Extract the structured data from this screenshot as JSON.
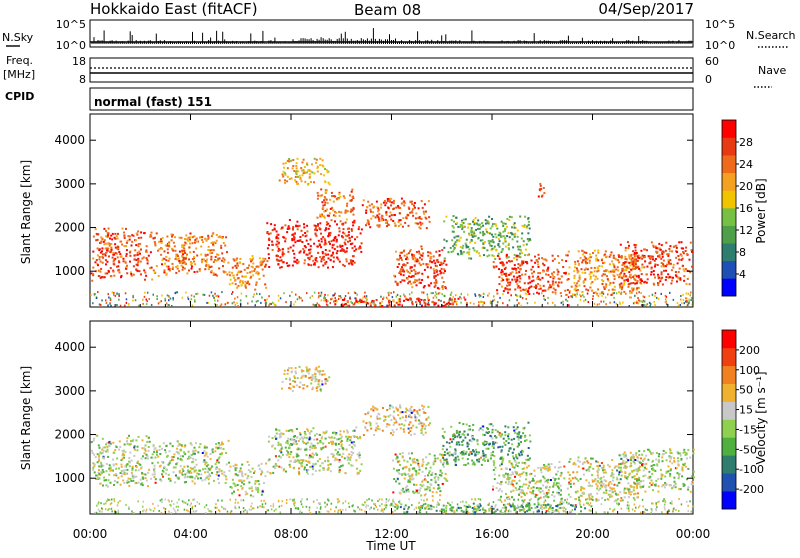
{
  "header": {
    "station": "Hokkaido East (fitACF)",
    "beam": "Beam 08",
    "date": "04/Sep/2017"
  },
  "aux_panels": {
    "nsky_label": "N.Sky",
    "nsky_ticks": [
      "10^5",
      "10^0"
    ],
    "nsearch_label": "N.Search",
    "nsearch_ticks": [
      "10^5",
      "10^0"
    ],
    "freq_label": "Freq.",
    "freq_unit": "[MHz]",
    "freq_ticks": [
      "18",
      "8"
    ],
    "nave_label": "Nave",
    "nave_ticks": [
      "60",
      "0"
    ],
    "cpid_label": "CPID",
    "cpid_text": "normal (fast) 151"
  },
  "chart_data": [
    {
      "type": "heatmap",
      "name": "power",
      "ylabel": "Slant Range [km]",
      "xlabel": "",
      "x_ticks": [
        "00:00",
        "04:00",
        "08:00",
        "12:00",
        "16:00",
        "20:00",
        "00:00"
      ],
      "y_ticks": [
        1000,
        2000,
        3000,
        4000
      ],
      "ylim": [
        180,
        4600
      ],
      "xlim_hours": [
        0,
        24
      ],
      "colorbar": {
        "label": "Power [dB]",
        "ticks": [
          "4",
          "8",
          "12",
          "16",
          "20",
          "24",
          "28"
        ],
        "colors": [
          "#0000ff",
          "#1d4fb5",
          "#2e7d6e",
          "#4f9f4a",
          "#76c043",
          "#f2c400",
          "#f4a020",
          "#ef6a1a",
          "#e83a12",
          "#ff0000"
        ]
      },
      "regions": [
        {
          "t": [
            0.0,
            2.5
          ],
          "r": [
            800,
            2000
          ],
          "level": 0.82
        },
        {
          "t": [
            2.5,
            5.5
          ],
          "r": [
            900,
            1900
          ],
          "level": 0.75
        },
        {
          "t": [
            5.5,
            7.0
          ],
          "r": [
            600,
            1400
          ],
          "level": 0.7
        },
        {
          "t": [
            7.0,
            10.8
          ],
          "r": [
            1100,
            2200
          ],
          "level": 0.92
        },
        {
          "t": [
            7.5,
            9.5
          ],
          "r": [
            3000,
            3600
          ],
          "level": 0.6
        },
        {
          "t": [
            9.0,
            10.5
          ],
          "r": [
            2200,
            2900
          ],
          "level": 0.75
        },
        {
          "t": [
            10.8,
            13.5
          ],
          "r": [
            2000,
            2700
          ],
          "level": 0.8
        },
        {
          "t": [
            12.0,
            14.2
          ],
          "r": [
            600,
            1600
          ],
          "level": 0.85
        },
        {
          "t": [
            14.0,
            17.5
          ],
          "r": [
            1300,
            2300
          ],
          "level": 0.4
        },
        {
          "t": [
            16.0,
            19.0
          ],
          "r": [
            500,
            1400
          ],
          "level": 0.85
        },
        {
          "t": [
            17.8,
            18.1
          ],
          "r": [
            2700,
            3100
          ],
          "level": 0.8
        },
        {
          "t": [
            19.0,
            22.0
          ],
          "r": [
            500,
            1500
          ],
          "level": 0.7
        },
        {
          "t": [
            21.0,
            24.0
          ],
          "r": [
            700,
            1700
          ],
          "level": 0.85
        },
        {
          "t": [
            9.0,
            15.0
          ],
          "r": [
            200,
            400
          ],
          "level": 0.95
        }
      ]
    },
    {
      "type": "heatmap",
      "name": "velocity",
      "ylabel": "Slant Range [km]",
      "xlabel": "Time UT",
      "x_ticks": [
        "00:00",
        "04:00",
        "08:00",
        "12:00",
        "16:00",
        "20:00",
        "00:00"
      ],
      "y_ticks": [
        1000,
        2000,
        3000,
        4000
      ],
      "ylim": [
        180,
        4600
      ],
      "xlim_hours": [
        0,
        24
      ],
      "colorbar": {
        "label": "Velocity [m s⁻¹]",
        "ticks": [
          "200",
          "100",
          "50",
          "15",
          "-15",
          "-50",
          "-100",
          "-200"
        ],
        "colors": [
          "#0000ff",
          "#2050b0",
          "#2e7d6e",
          "#4fb040",
          "#8fd050",
          "#c8c8c8",
          "#f0b030",
          "#f08020",
          "#f04010",
          "#ff0000"
        ]
      },
      "regions": [
        {
          "t": [
            0.0,
            2.5
          ],
          "r": [
            800,
            2000
          ],
          "level": 0.5
        },
        {
          "t": [
            2.5,
            5.5
          ],
          "r": [
            900,
            1900
          ],
          "level": 0.5
        },
        {
          "t": [
            5.5,
            7.0
          ],
          "r": [
            600,
            1400
          ],
          "level": 0.5
        },
        {
          "t": [
            7.0,
            10.8
          ],
          "r": [
            1100,
            2200
          ],
          "level": 0.5
        },
        {
          "t": [
            7.5,
            9.5
          ],
          "r": [
            3000,
            3600
          ],
          "level": 0.6
        },
        {
          "t": [
            10.8,
            13.5
          ],
          "r": [
            2000,
            2700
          ],
          "level": 0.62
        },
        {
          "t": [
            12.0,
            14.2
          ],
          "r": [
            600,
            1600
          ],
          "level": 0.5
        },
        {
          "t": [
            14.0,
            17.5
          ],
          "r": [
            1300,
            2300
          ],
          "level": 0.35
        },
        {
          "t": [
            16.0,
            19.0
          ],
          "r": [
            500,
            1400
          ],
          "level": 0.5
        },
        {
          "t": [
            19.0,
            22.0
          ],
          "r": [
            500,
            1500
          ],
          "level": 0.55
        },
        {
          "t": [
            21.0,
            24.0
          ],
          "r": [
            700,
            1700
          ],
          "level": 0.5
        },
        {
          "t": [
            11.5,
            20.0
          ],
          "r": [
            200,
            450
          ],
          "level": 0.32
        }
      ]
    }
  ]
}
